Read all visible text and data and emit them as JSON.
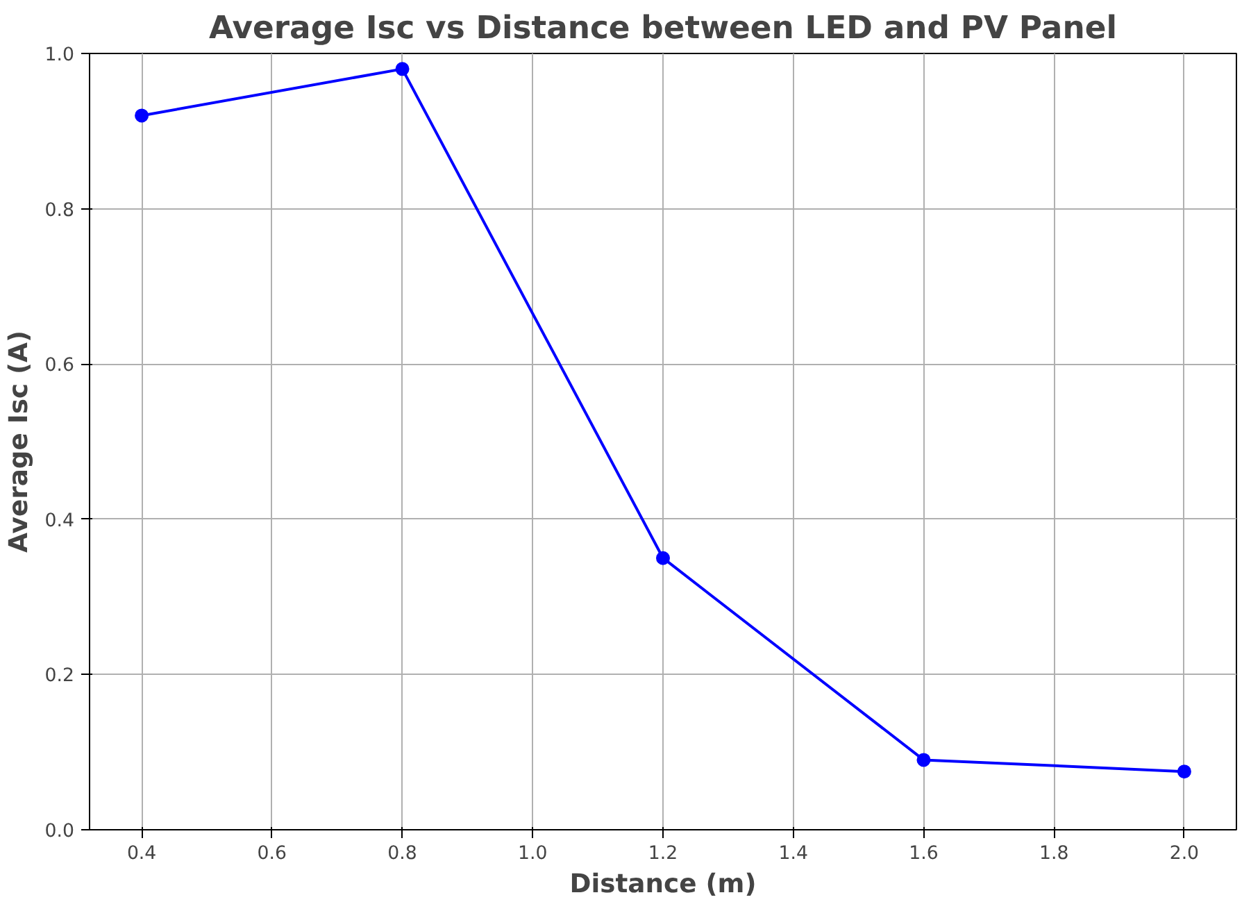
{
  "chart_data": {
    "type": "line",
    "title": "Average Isc vs Distance between LED and PV Panel",
    "xlabel": "Distance (m)",
    "ylabel": "Average Isc (A)",
    "x": [
      0.4,
      0.8,
      1.2,
      1.6,
      2.0
    ],
    "series": [
      {
        "color": "#0000ff",
        "values": [
          0.92,
          0.98,
          0.35,
          0.09,
          0.075
        ]
      }
    ],
    "xlim": [
      0.32,
      2.08
    ],
    "ylim": [
      0.0,
      1.0
    ],
    "xticks": [
      {
        "value": 0.4,
        "label": "0.4"
      },
      {
        "value": 0.6,
        "label": "0.6"
      },
      {
        "value": 0.8,
        "label": "0.8"
      },
      {
        "value": 1.0,
        "label": "1.0"
      },
      {
        "value": 1.2,
        "label": "1.2"
      },
      {
        "value": 1.4,
        "label": "1.4"
      },
      {
        "value": 1.6,
        "label": "1.6"
      },
      {
        "value": 1.8,
        "label": "1.8"
      },
      {
        "value": 2.0,
        "label": "2.0"
      }
    ],
    "yticks": [
      {
        "value": 0.0,
        "label": "0.0"
      },
      {
        "value": 0.2,
        "label": "0.2"
      },
      {
        "value": 0.4,
        "label": "0.4"
      },
      {
        "value": 0.6,
        "label": "0.6"
      },
      {
        "value": 0.8,
        "label": "0.8"
      },
      {
        "value": 1.0,
        "label": "1.0"
      }
    ],
    "grid": true,
    "marker": "circle",
    "line_style": "solid"
  }
}
